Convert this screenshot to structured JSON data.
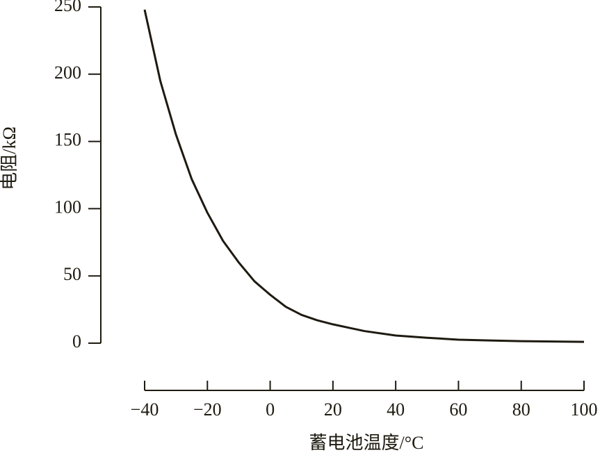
{
  "chart_data": {
    "type": "line",
    "x_label": "蓄电池温度/°C",
    "y_label": "电阻/kΩ",
    "x": [
      -40,
      -35,
      -30,
      -25,
      -20,
      -15,
      -10,
      -5,
      0,
      5,
      10,
      15,
      20,
      30,
      40,
      50,
      60,
      70,
      80,
      90,
      100
    ],
    "series": [
      {
        "name": "电阻",
        "color": "#1e1a10",
        "values": [
          248,
          195,
          155,
          122,
          97,
          76,
          60,
          46,
          36,
          27,
          21,
          17,
          14,
          9,
          5.7,
          4,
          2.6,
          2,
          1.5,
          1.2,
          1
        ]
      }
    ],
    "xlim": [
      -40,
      100
    ],
    "xticks": [
      {
        "value": -40,
        "label": "−40"
      },
      {
        "value": -20,
        "label": "−20"
      },
      0,
      20,
      40,
      60,
      80,
      100
    ],
    "ylim": [
      0,
      250
    ],
    "yticks": [
      0,
      50,
      100,
      150,
      200,
      250
    ],
    "grid": false
  }
}
